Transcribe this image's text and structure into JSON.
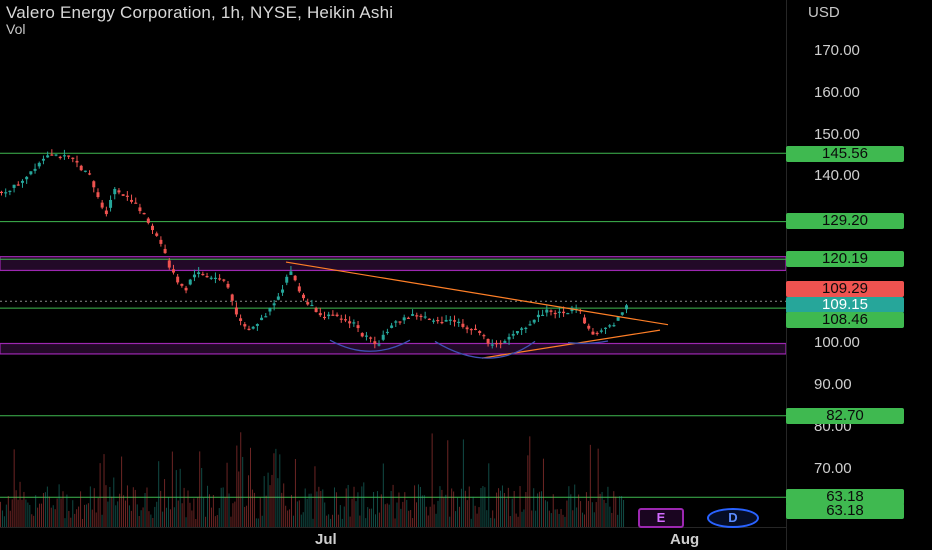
{
  "header": {
    "title": "Valero Energy Corporation, 1h, NYSE, Heikin Ashi",
    "indicator": "Vol",
    "currency": "USD"
  },
  "y_axis": {
    "ticks": [
      "170.00",
      "160.00",
      "150.00",
      "140.00",
      "100.00",
      "90.00",
      "80.00",
      "70.00"
    ]
  },
  "x_axis": {
    "ticks": [
      "Jul",
      "Aug"
    ]
  },
  "badges": [
    {
      "label": "145.56",
      "color": "green"
    },
    {
      "label": "129.20",
      "color": "green"
    },
    {
      "label": "120.19",
      "color": "green"
    },
    {
      "label": "109.29",
      "color": "red"
    },
    {
      "label": "109.15",
      "color": "teal"
    },
    {
      "label": "108.46",
      "color": "green"
    },
    {
      "label": "82.70",
      "color": "green"
    },
    {
      "label": "63.18",
      "color": "green"
    },
    {
      "label": "63.18",
      "color": "green"
    }
  ],
  "events": {
    "earnings": "E",
    "dividend": "D"
  },
  "colors": {
    "up": "#26a69a",
    "down": "#ef5350",
    "level": "#3fb950",
    "zone": "#9c27b0",
    "trendline": "#ff7f27",
    "arc": "#3f51b5"
  },
  "chart_data": {
    "type": "candlestick",
    "title": "Valero Energy Corporation, 1h, NYSE, Heikin Ashi",
    "y_unit": "USD",
    "ylim": [
      60,
      178
    ],
    "horizontal_levels": [
      145.56,
      129.2,
      120.19,
      108.46,
      82.7,
      63.18
    ],
    "zones": [
      [
        117.5,
        120.8
      ],
      [
        97.5,
        100
      ]
    ],
    "last_price": 109.29,
    "current_price": 109.15,
    "close_path": [
      {
        "t": 0.0,
        "c": 136
      },
      {
        "t": 0.02,
        "c": 138
      },
      {
        "t": 0.04,
        "c": 142
      },
      {
        "t": 0.06,
        "c": 146
      },
      {
        "t": 0.07,
        "c": 145
      },
      {
        "t": 0.09,
        "c": 144
      },
      {
        "t": 0.11,
        "c": 140
      },
      {
        "t": 0.12,
        "c": 135
      },
      {
        "t": 0.13,
        "c": 131
      },
      {
        "t": 0.14,
        "c": 137
      },
      {
        "t": 0.16,
        "c": 135
      },
      {
        "t": 0.18,
        "c": 130
      },
      {
        "t": 0.2,
        "c": 124
      },
      {
        "t": 0.21,
        "c": 118
      },
      {
        "t": 0.22,
        "c": 115
      },
      {
        "t": 0.23,
        "c": 113
      },
      {
        "t": 0.24,
        "c": 117
      },
      {
        "t": 0.26,
        "c": 116
      },
      {
        "t": 0.28,
        "c": 115
      },
      {
        "t": 0.29,
        "c": 109
      },
      {
        "t": 0.3,
        "c": 104
      },
      {
        "t": 0.31,
        "c": 103
      },
      {
        "t": 0.33,
        "c": 107
      },
      {
        "t": 0.35,
        "c": 113
      },
      {
        "t": 0.36,
        "c": 118
      },
      {
        "t": 0.37,
        "c": 113
      },
      {
        "t": 0.38,
        "c": 110
      },
      {
        "t": 0.4,
        "c": 107
      },
      {
        "t": 0.42,
        "c": 106
      },
      {
        "t": 0.44,
        "c": 105
      },
      {
        "t": 0.45,
        "c": 102
      },
      {
        "t": 0.46,
        "c": 101
      },
      {
        "t": 0.47,
        "c": 100
      },
      {
        "t": 0.48,
        "c": 103
      },
      {
        "t": 0.5,
        "c": 106
      },
      {
        "t": 0.52,
        "c": 107
      },
      {
        "t": 0.54,
        "c": 105
      },
      {
        "t": 0.56,
        "c": 106
      },
      {
        "t": 0.58,
        "c": 104
      },
      {
        "t": 0.59,
        "c": 103
      },
      {
        "t": 0.6,
        "c": 103
      },
      {
        "t": 0.61,
        "c": 99
      },
      {
        "t": 0.62,
        "c": 100
      },
      {
        "t": 0.64,
        "c": 102
      },
      {
        "t": 0.66,
        "c": 105
      },
      {
        "t": 0.68,
        "c": 108
      },
      {
        "t": 0.7,
        "c": 107
      },
      {
        "t": 0.72,
        "c": 109
      },
      {
        "t": 0.73,
        "c": 104
      },
      {
        "t": 0.74,
        "c": 102
      },
      {
        "t": 0.76,
        "c": 104
      },
      {
        "t": 0.77,
        "c": 106
      },
      {
        "t": 0.78,
        "c": 109.15
      }
    ],
    "legend": "none",
    "grid": false
  }
}
